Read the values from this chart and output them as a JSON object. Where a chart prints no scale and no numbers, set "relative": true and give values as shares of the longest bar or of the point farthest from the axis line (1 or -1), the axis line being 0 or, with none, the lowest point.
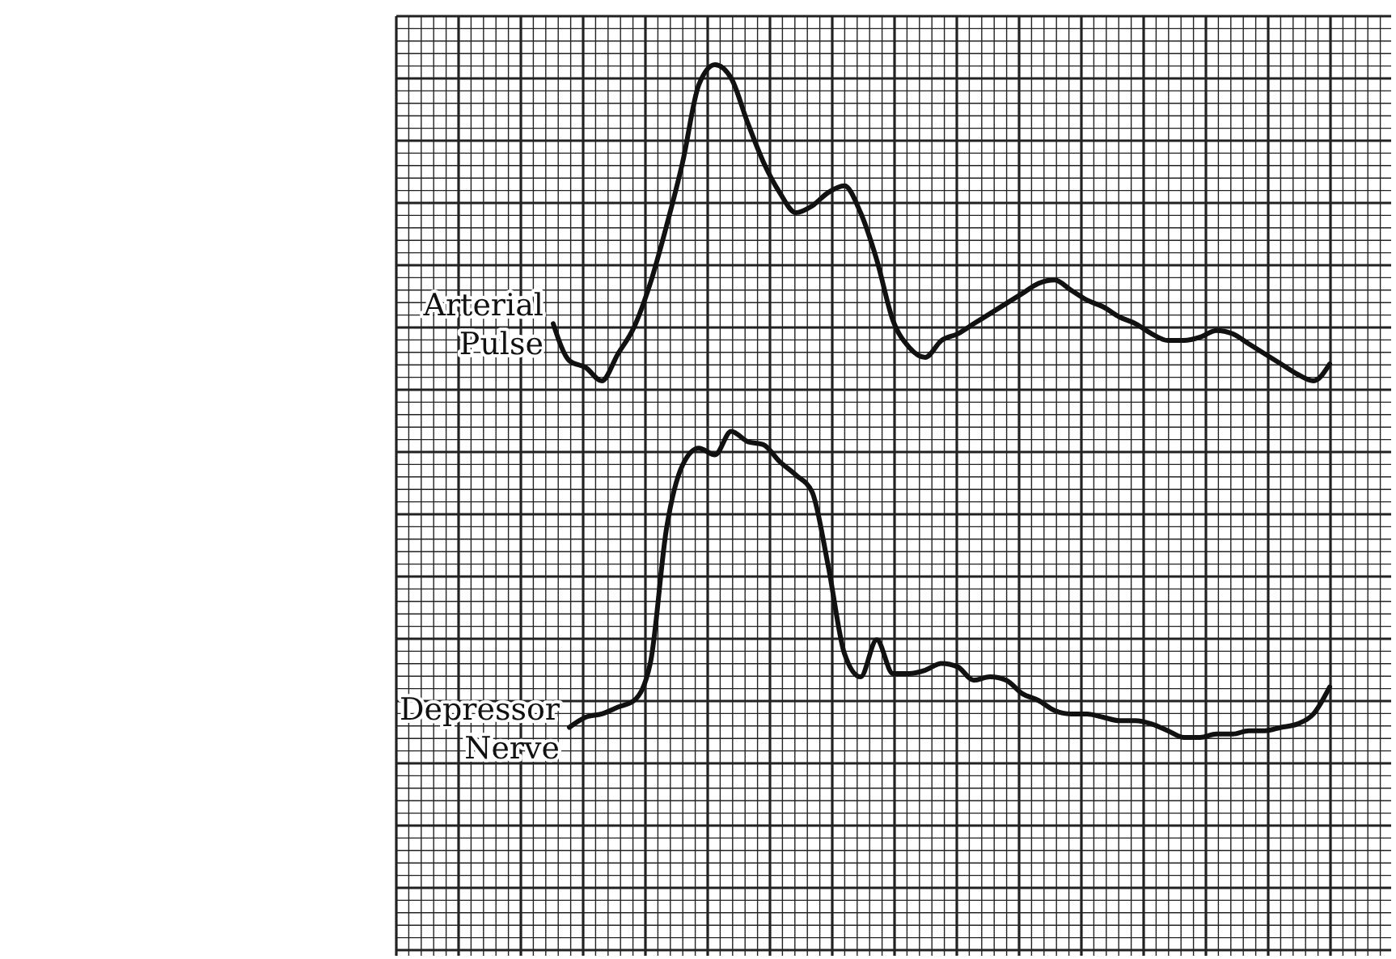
{
  "chart_data": {
    "type": "line",
    "relative": true,
    "grid": true,
    "line_style": "solid",
    "marker": "none",
    "categories": [
      null,
      null,
      null,
      null,
      null,
      null,
      null,
      null,
      null,
      null,
      null,
      null,
      null,
      null,
      null,
      null,
      null,
      null,
      null,
      null,
      null,
      null,
      null,
      null,
      null,
      null,
      null,
      null,
      null,
      null,
      null,
      null,
      null,
      null,
      null,
      null,
      null,
      null,
      null,
      null,
      null,
      null,
      null,
      null,
      null,
      null,
      null,
      null,
      null
    ],
    "series": [
      {
        "name": "Arterial Pulse",
        "color": "#111111",
        "values": [
          0.615,
          0.56,
          0.55,
          0.53,
          0.57,
          0.61,
          0.675,
          0.76,
          0.855,
          0.97,
          1.0,
          0.98,
          0.915,
          0.855,
          0.81,
          0.78,
          0.79,
          0.81,
          0.82,
          0.78,
          0.71,
          0.62,
          0.58,
          0.565,
          0.59,
          0.6,
          0.615,
          0.63,
          0.645,
          0.66,
          0.675,
          0.68,
          0.665,
          0.65,
          0.64,
          0.625,
          0.615,
          0.6,
          0.59,
          0.59,
          0.595,
          0.605,
          0.6,
          0.585,
          0.57,
          0.555,
          0.54,
          0.53,
          0.555
        ]
      },
      {
        "name": "Depressor Nerve",
        "color": "#111111",
        "values": [
          null,
          0.015,
          0.03,
          0.035,
          0.045,
          0.055,
          0.11,
          0.31,
          0.405,
          0.43,
          0.42,
          0.455,
          0.44,
          0.435,
          0.41,
          0.39,
          0.365,
          0.255,
          0.125,
          0.09,
          0.145,
          0.095,
          0.095,
          0.1,
          0.11,
          0.105,
          0.085,
          0.09,
          0.085,
          0.065,
          0.055,
          0.04,
          0.035,
          0.035,
          0.03,
          0.025,
          0.025,
          0.02,
          0.01,
          0.0,
          0.0,
          0.005,
          0.005,
          0.01,
          0.01,
          0.015,
          0.02,
          0.035,
          0.075
        ]
      }
    ]
  }
}
